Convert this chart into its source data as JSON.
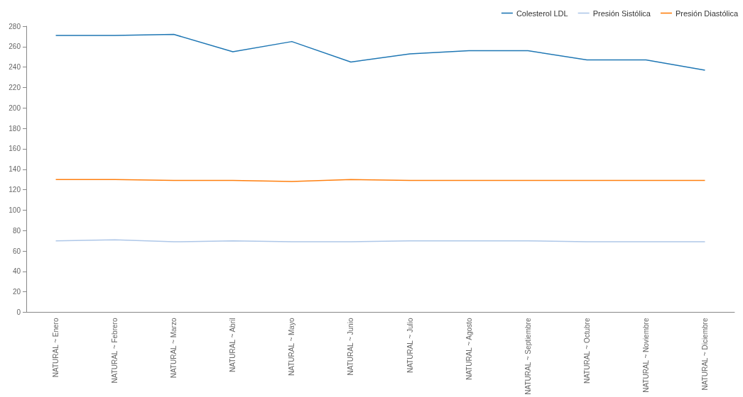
{
  "chart_data": {
    "type": "line",
    "categories": [
      "NATURAL ~ Enero",
      "NATURAL ~ Febrero",
      "NATURAL ~ Marzo",
      "NATURAL ~ Abril",
      "NATURAL ~ Mayo",
      "NATURAL ~ Junio",
      "NATURAL ~ Julio",
      "NATURAL ~ Agosto",
      "NATURAL ~ Septiembre",
      "NATURAL ~ Octubre",
      "NATURAL ~ Noviembre",
      "NATURAL ~ Diciembre"
    ],
    "series": [
      {
        "name": "Colesterol LDL",
        "color": "#1f77b4",
        "values": [
          271,
          271,
          272,
          255,
          265,
          245,
          253,
          256,
          256,
          247,
          247,
          237
        ]
      },
      {
        "name": "Presión Sistólica",
        "color": "#aec7e8",
        "values": [
          70,
          71,
          69,
          70,
          69,
          69,
          70,
          70,
          70,
          69,
          69,
          69
        ]
      },
      {
        "name": "Presión Diastólica",
        "color": "#ff7f0e",
        "values": [
          130,
          130,
          129,
          129,
          128,
          130,
          129,
          129,
          129,
          129,
          129,
          129
        ]
      }
    ],
    "ylim": [
      0,
      280
    ],
    "yticks": [
      0,
      20,
      40,
      60,
      80,
      100,
      120,
      140,
      160,
      180,
      200,
      220,
      240,
      260,
      280
    ],
    "grid": false,
    "legend": "top right",
    "marker": "none",
    "line_style": "solid"
  }
}
